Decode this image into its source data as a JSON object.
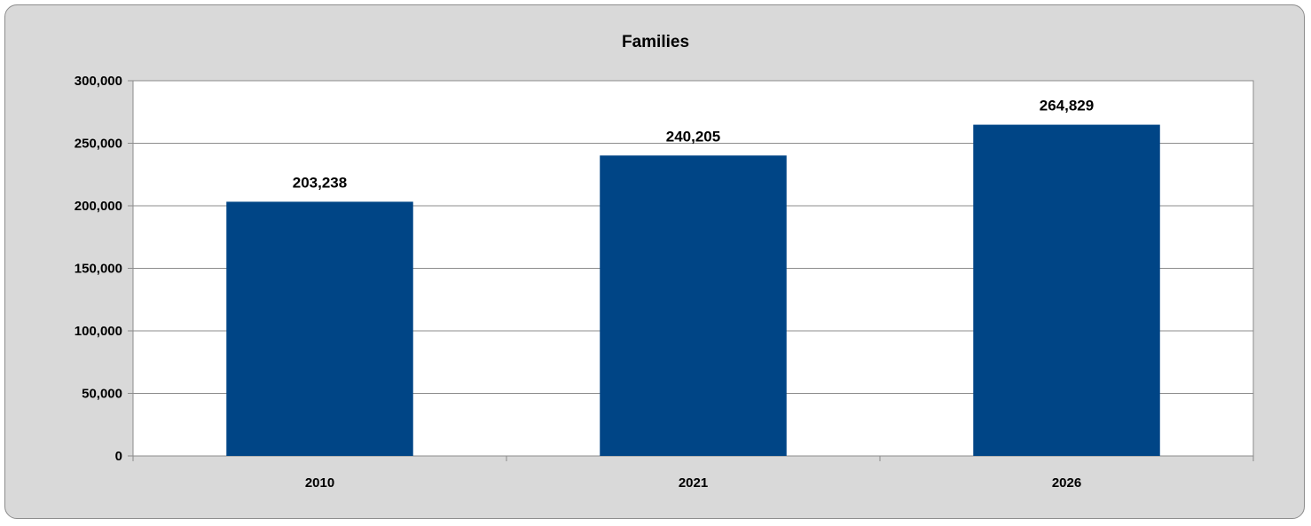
{
  "chart_data": {
    "type": "bar",
    "title": "Families",
    "xlabel": "",
    "ylabel": "",
    "categories": [
      "2010",
      "2021",
      "2026"
    ],
    "values": [
      203238,
      240205,
      264829
    ],
    "data_labels": [
      "203,238",
      "240,205",
      "264,829"
    ],
    "ylim": [
      0,
      300000
    ],
    "yticks": [
      0,
      50000,
      100000,
      150000,
      200000,
      250000,
      300000
    ],
    "ytick_labels": [
      "0",
      "50,000",
      "100,000",
      "150,000",
      "200,000",
      "250,000",
      "300,000"
    ],
    "grid": true,
    "legend": "none",
    "colors": {
      "bar": "#004586",
      "background": "#d9d9d9",
      "plot_area": "#ffffff",
      "gridline": "#8c8c8c"
    }
  }
}
